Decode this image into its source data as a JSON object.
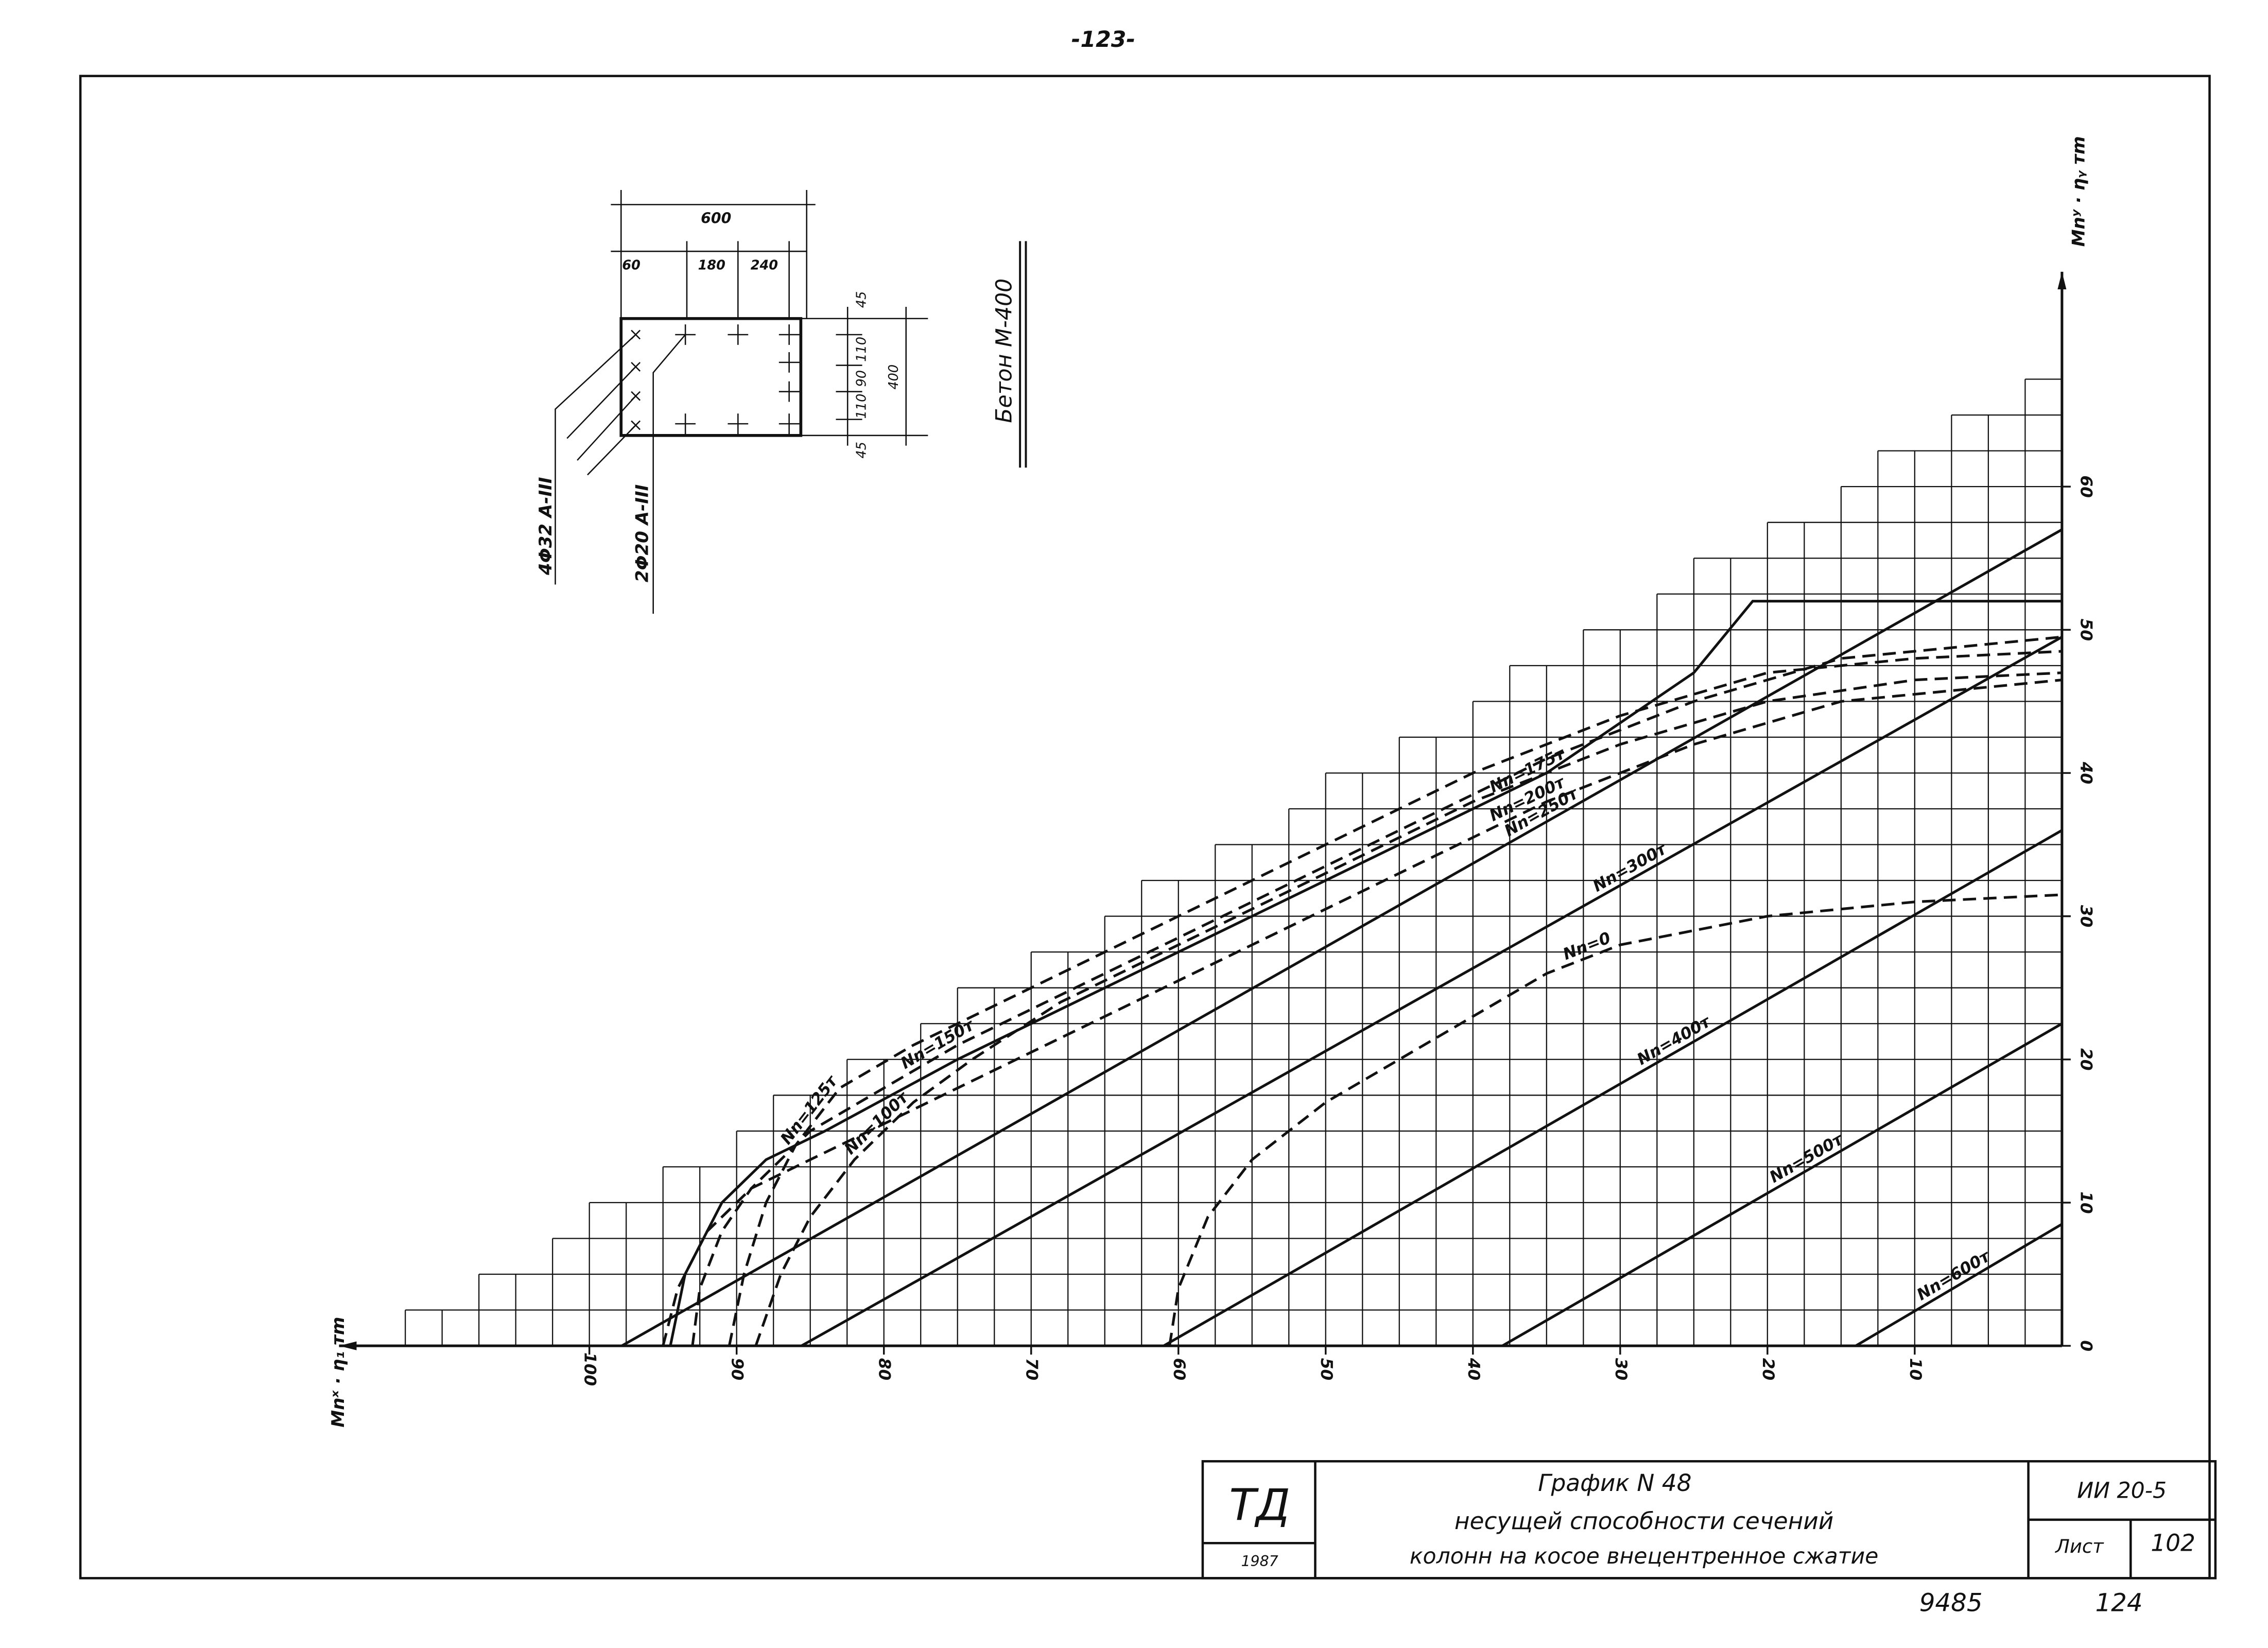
{
  "page_number": "-123-",
  "footer": {
    "left": "9485",
    "right": "124"
  },
  "section": {
    "concrete": "Бетон М-400",
    "rebar": [
      "4Φ32 A-III",
      "2Φ20 A-III"
    ],
    "dims_top": [
      "600",
      "60",
      "180",
      "240"
    ],
    "dims_right": [
      "45",
      "110",
      "90",
      "110",
      "45",
      "400"
    ]
  },
  "title_block": {
    "logo": "ТД",
    "year": "1987",
    "title": "График N 48",
    "subtitle_lines": [
      "несущей способности сечений",
      "колонн на косое внецентренное сжатие"
    ],
    "code": "ИИ 20-5",
    "sheet_label": "Лист",
    "sheet": "102"
  },
  "chart_data": {
    "type": "line",
    "x_label": "Mnˣ · η₁ тm",
    "y_label": "Mnʸ · ηᵧ тm",
    "xlim": [
      117,
      0
    ],
    "ylim": [
      0,
      75
    ],
    "xticks": [
      10,
      20,
      30,
      40,
      50,
      60,
      70,
      80,
      90,
      100
    ],
    "yticks": [
      0,
      10,
      20,
      30,
      40,
      50,
      60
    ],
    "grid": true,
    "series": [
      {
        "name": "Nn=100т",
        "color": "#111",
        "dashed": true,
        "x": [
          88.7,
          87,
          85,
          82,
          78,
          74,
          68,
          60,
          50,
          40,
          30,
          20,
          10,
          0
        ],
        "values": [
          0,
          5,
          9,
          13,
          17,
          20,
          24,
          28,
          33,
          38,
          42,
          45,
          46.5,
          47
        ]
      },
      {
        "name": "Nn=125т",
        "color": "#111",
        "dashed": true,
        "x": [
          90.5,
          89.5,
          88,
          86,
          83,
          78,
          70,
          60,
          50,
          40,
          30,
          20,
          10,
          0
        ],
        "values": [
          0,
          5,
          10,
          14,
          18,
          21,
          25,
          30,
          35,
          40,
          44,
          47,
          48,
          48.5
        ]
      },
      {
        "name": "Nn=150т",
        "color": "#111",
        "dashed": true,
        "x": [
          93,
          92.5,
          91,
          89,
          85,
          80,
          75,
          65,
          55,
          45,
          35,
          25,
          15,
          0
        ],
        "values": [
          0,
          4,
          8,
          11,
          15,
          18,
          21,
          26,
          31,
          36,
          41,
          45,
          48,
          49.5
        ]
      },
      {
        "name": "Nn=175т",
        "color": "#111",
        "dashed": false,
        "x": [
          94.5,
          93.5,
          91,
          88,
          84,
          75,
          65,
          55,
          45,
          35,
          25,
          21,
          10,
          0
        ],
        "values": [
          0,
          5,
          10,
          13,
          15,
          20,
          25,
          30,
          35,
          40,
          47,
          52,
          52,
          52
        ]
      },
      {
        "name": "Nn=200т",
        "color": "#111",
        "dashed": true,
        "x": [
          95,
          94,
          92,
          89,
          85,
          75,
          65,
          55,
          45,
          35,
          25,
          15,
          0
        ],
        "values": [
          0,
          4,
          8,
          11,
          13,
          18,
          23,
          28,
          33,
          38,
          42,
          45,
          46.5
        ]
      },
      {
        "name": "Nn=250т",
        "color": "#111",
        "dashed": false,
        "x": [
          97.8,
          0
        ],
        "values": [
          0,
          57
        ]
      },
      {
        "name": "Nn=300т",
        "color": "#111",
        "dashed": false,
        "x": [
          85.6,
          0
        ],
        "values": [
          0,
          49.5
        ]
      },
      {
        "name": "Nn=0",
        "color": "#111",
        "dashed": true,
        "x": [
          60.6,
          60,
          58,
          55,
          50,
          45,
          40,
          35,
          30,
          20,
          10,
          0
        ],
        "values": [
          0,
          4,
          9,
          13,
          17,
          20,
          23,
          26,
          28,
          30,
          31,
          31.5
        ]
      },
      {
        "name": "Nn=400т",
        "color": "#111",
        "dashed": false,
        "x": [
          61,
          0
        ],
        "values": [
          0,
          36
        ]
      },
      {
        "name": "Nn=500т",
        "color": "#111",
        "dashed": false,
        "x": [
          38,
          0
        ],
        "values": [
          0,
          22.5
        ]
      },
      {
        "name": "Nn=600т",
        "color": "#111",
        "dashed": false,
        "x": [
          14,
          0
        ],
        "values": [
          0,
          8.5
        ]
      }
    ]
  }
}
